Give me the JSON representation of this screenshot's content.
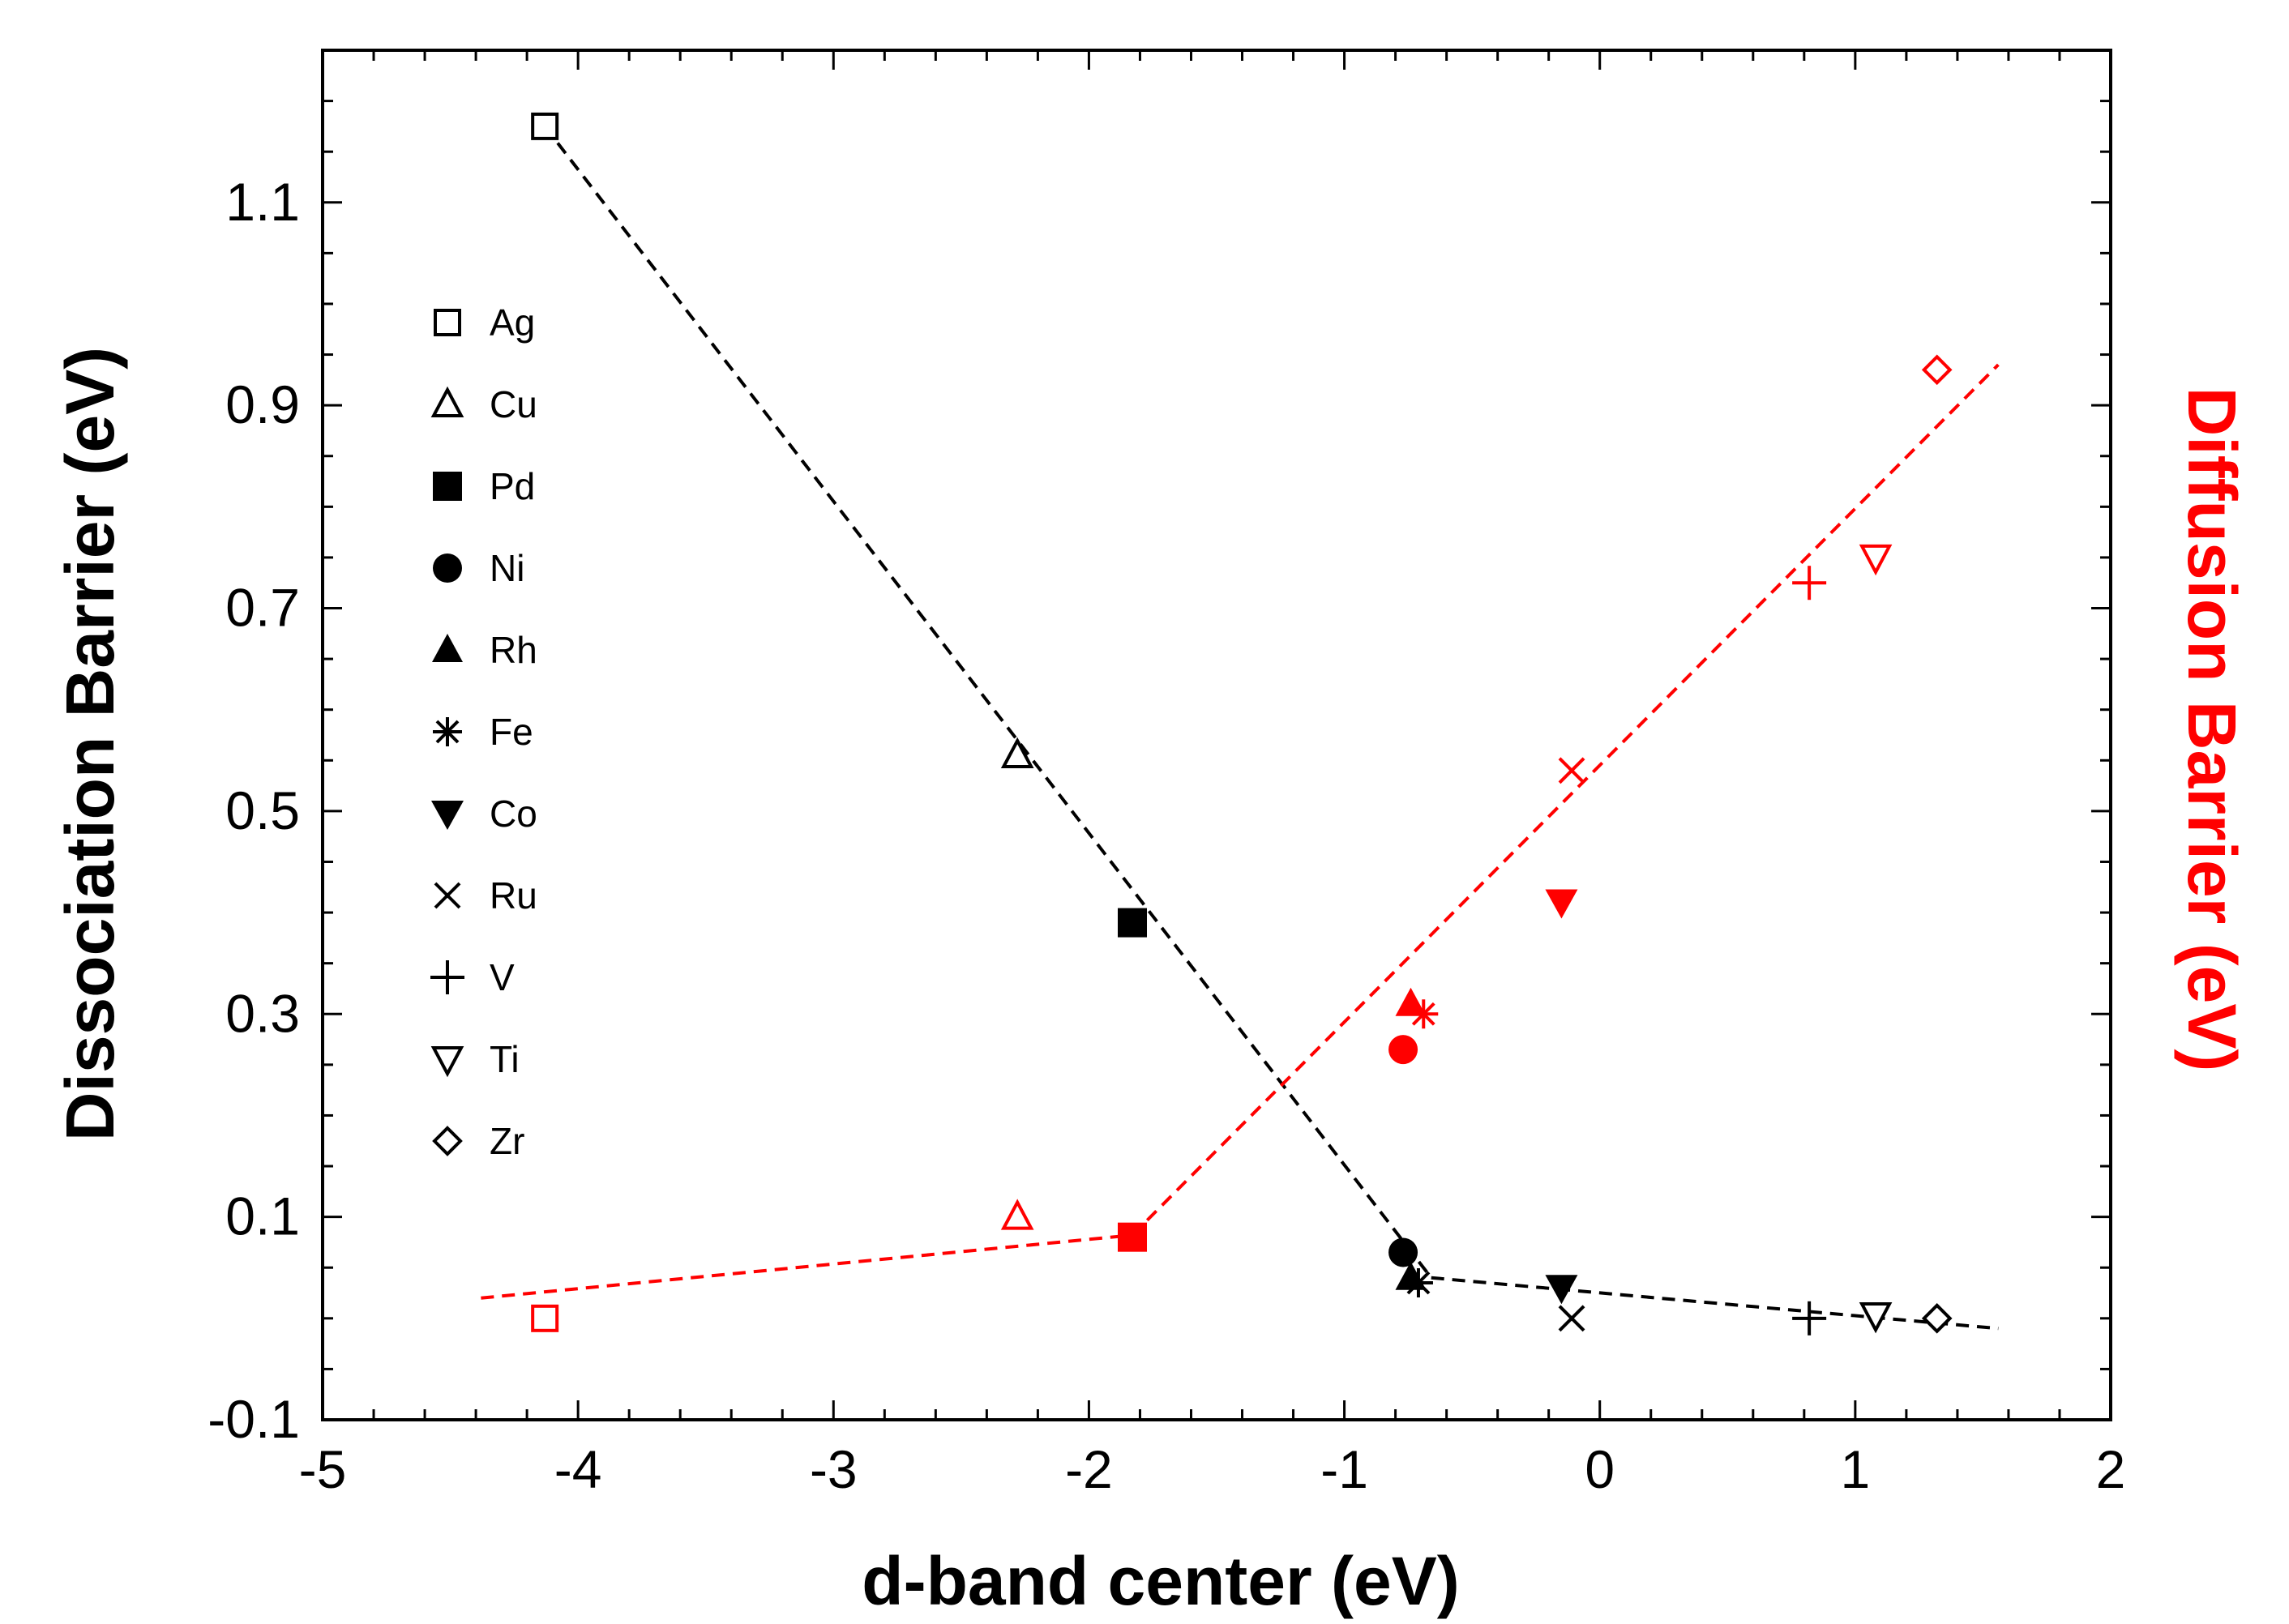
{
  "chart_data": {
    "type": "scatter",
    "title": "",
    "xlabel": "d-band center (eV)",
    "ylabel": "Dissociation Barrier (eV)",
    "y2label": "Diffusion Barrier (eV)",
    "xlim": [
      -5,
      2
    ],
    "ylim": [
      -0.1,
      1.25
    ],
    "xticks": [
      -5,
      -4,
      -3,
      -2,
      -1,
      0,
      1,
      2
    ],
    "xtick_labels": [
      "-5",
      "-4",
      "-3",
      "-2",
      "-1",
      "0",
      "1",
      "2"
    ],
    "yticks": [
      -0.1,
      0.1,
      0.3,
      0.5,
      0.7,
      0.9,
      1.1
    ],
    "ytick_labels": [
      "-0.1",
      "0.1",
      "0.3",
      "0.5",
      "0.7",
      "0.9",
      "1.1"
    ],
    "grid": false,
    "legend_position": "upper-left",
    "colors": {
      "dissociation": "#000000",
      "diffusion": "#ff0000"
    },
    "legend": [
      {
        "label": "Ag",
        "marker": "square-open"
      },
      {
        "label": "Cu",
        "marker": "triangle-up-open"
      },
      {
        "label": "Pd",
        "marker": "square-filled"
      },
      {
        "label": "Ni",
        "marker": "circle-filled"
      },
      {
        "label": "Rh",
        "marker": "triangle-up-filled"
      },
      {
        "label": "Fe",
        "marker": "asterisk"
      },
      {
        "label": "Co",
        "marker": "triangle-down-filled"
      },
      {
        "label": "Ru",
        "marker": "cross"
      },
      {
        "label": "V",
        "marker": "plus"
      },
      {
        "label": "Ti",
        "marker": "triangle-down-open"
      },
      {
        "label": "Zr",
        "marker": "diamond-open"
      }
    ],
    "series": [
      {
        "name": "Dissociation Barrier",
        "color": "#000000",
        "axis": "left",
        "points": [
          {
            "metal": "Ag",
            "marker": "square-open",
            "x": -4.13,
            "y": 1.175
          },
          {
            "metal": "Cu",
            "marker": "triangle-up-open",
            "x": -2.28,
            "y": 0.555
          },
          {
            "metal": "Pd",
            "marker": "square-filled",
            "x": -1.83,
            "y": 0.39
          },
          {
            "metal": "Ni",
            "marker": "circle-filled",
            "x": -0.77,
            "y": 0.065
          },
          {
            "metal": "Rh",
            "marker": "triangle-up-filled",
            "x": -0.74,
            "y": 0.04
          },
          {
            "metal": "Fe",
            "marker": "asterisk",
            "x": -0.71,
            "y": 0.035
          },
          {
            "metal": "Co",
            "marker": "triangle-down-filled",
            "x": -0.15,
            "y": 0.03
          },
          {
            "metal": "Ru",
            "marker": "cross",
            "x": -0.11,
            "y": 0.0
          },
          {
            "metal": "V",
            "marker": "plus",
            "x": 0.82,
            "y": 0.0
          },
          {
            "metal": "Ti",
            "marker": "triangle-down-open",
            "x": 1.08,
            "y": 0.003
          },
          {
            "metal": "Zr",
            "marker": "diamond-open",
            "x": 1.32,
            "y": 0.0
          }
        ],
        "fit_lines": [
          {
            "x": [
              -4.13,
              -0.66
            ],
            "y": [
              1.175,
              0.04
            ]
          },
          {
            "x": [
              -0.66,
              1.56
            ],
            "y": [
              0.04,
              -0.01
            ]
          }
        ]
      },
      {
        "name": "Diffusion Barrier",
        "color": "#ff0000",
        "axis": "right",
        "points": [
          {
            "metal": "Ag",
            "marker": "square-open",
            "x": -4.13,
            "y": 0.0
          },
          {
            "metal": "Cu",
            "marker": "triangle-up-open",
            "x": -2.28,
            "y": 0.1
          },
          {
            "metal": "Pd",
            "marker": "square-filled",
            "x": -1.83,
            "y": 0.08
          },
          {
            "metal": "Ni",
            "marker": "circle-filled",
            "x": -0.77,
            "y": 0.265
          },
          {
            "metal": "Rh",
            "marker": "triangle-up-filled",
            "x": -0.74,
            "y": 0.31
          },
          {
            "metal": "Fe",
            "marker": "asterisk",
            "x": -0.69,
            "y": 0.3
          },
          {
            "metal": "Co",
            "marker": "triangle-down-filled",
            "x": -0.15,
            "y": 0.41
          },
          {
            "metal": "Ru",
            "marker": "cross",
            "x": -0.11,
            "y": 0.54
          },
          {
            "metal": "V",
            "marker": "plus",
            "x": 0.82,
            "y": 0.725
          },
          {
            "metal": "Ti",
            "marker": "triangle-down-open",
            "x": 1.08,
            "y": 0.75
          },
          {
            "metal": "Zr",
            "marker": "diamond-open",
            "x": 1.32,
            "y": 0.935
          }
        ],
        "fit_lines": [
          {
            "x": [
              -4.38,
              -1.83
            ],
            "y": [
              0.02,
              0.082
            ]
          },
          {
            "x": [
              -1.83,
              1.56
            ],
            "y": [
              0.082,
              0.94
            ]
          }
        ]
      }
    ]
  }
}
